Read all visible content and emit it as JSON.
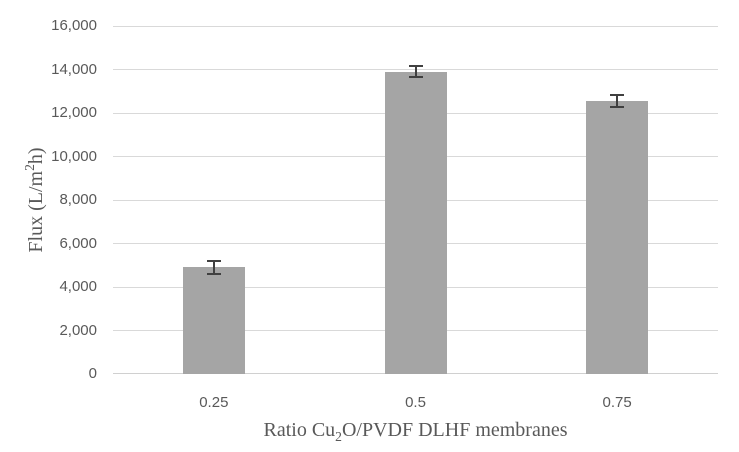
{
  "colors": {
    "background": "#ffffff",
    "bar": "#a5a5a5",
    "error_bar": "#404040",
    "gridline": "#d9d9d9",
    "axis_line": "#d0d0d0",
    "tick_text": "#595959",
    "title_text": "#595959"
  },
  "chart_data": {
    "type": "bar",
    "title": "",
    "categories": [
      "0.25",
      "0.5",
      "0.75"
    ],
    "values": [
      4900,
      13900,
      12550
    ],
    "error_bars": [
      300,
      250,
      280
    ],
    "xlabel": "Ratio Cu₂O/PVDF DLHF membranes",
    "ylabel": "Flux (L/m²h)",
    "ylim": [
      0,
      16000
    ],
    "ytick_step": 2000,
    "ytick_labels": [
      "0",
      "2,000",
      "4,000",
      "6,000",
      "8,000",
      "10,000",
      "12,000",
      "14,000",
      "16,000"
    ],
    "grid": true,
    "legend": false,
    "xlabel_parts": [
      {
        "text": "Ratio Cu"
      },
      {
        "text": "2",
        "script": "sub"
      },
      {
        "text": "O/PVDF DLHF membranes"
      }
    ],
    "ylabel_parts": [
      {
        "text": "Flux (L/m"
      },
      {
        "text": "2",
        "script": "sup"
      },
      {
        "text": "h)"
      }
    ]
  }
}
